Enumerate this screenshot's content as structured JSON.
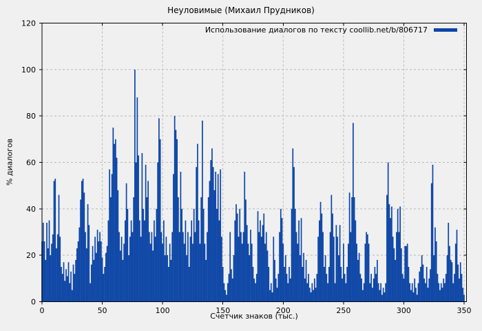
{
  "title": "Неуловимые (Михаил Прудников)",
  "legend": {
    "label": "Использование диалогов по тексту coollib.net/b/806717",
    "position": "top-right"
  },
  "colors": {
    "bar": "#0c45a6",
    "grid": "#b8b8b8",
    "background": "#f0f0f0",
    "border": "#000000",
    "text": "#000000"
  },
  "chart_data": {
    "type": "bar",
    "subtype": "impulses",
    "title": "Неуловимые (Михаил Прудников)",
    "xlabel": "Счетчик знаков (тыс.)",
    "ylabel": "% диалогов",
    "legend_label": "Использование диалогов по тексту coollib.net/b/806717",
    "legend_position": "top-right",
    "grid": true,
    "xlim": [
      0,
      352
    ],
    "ylim": [
      0,
      120
    ],
    "x_ticks": [
      0,
      50,
      100,
      150,
      200,
      250,
      300,
      350
    ],
    "y_ticks": [
      0,
      20,
      40,
      60,
      80,
      100,
      120
    ],
    "x_start": 0,
    "x_step": 1,
    "values": [
      26,
      34,
      26,
      18,
      34,
      23,
      35,
      20,
      25,
      29,
      52,
      53,
      23,
      29,
      46,
      28,
      15,
      12,
      17,
      9,
      14,
      11,
      17,
      8,
      13,
      5,
      16,
      12,
      18,
      23,
      26,
      32,
      44,
      52,
      53,
      47,
      30,
      23,
      42,
      33,
      8,
      16,
      24,
      18,
      28,
      21,
      31,
      26,
      30,
      26,
      19,
      12,
      15,
      21,
      24,
      35,
      57,
      45,
      55,
      75,
      68,
      70,
      62,
      48,
      30,
      22,
      28,
      18,
      25,
      35,
      51,
      40,
      20,
      28,
      35,
      30,
      45,
      100,
      60,
      88,
      63,
      35,
      28,
      64,
      40,
      35,
      59,
      45,
      52,
      30,
      25,
      30,
      22,
      35,
      28,
      40,
      60,
      79,
      70,
      30,
      25,
      35,
      20,
      28,
      20,
      15,
      25,
      18,
      30,
      55,
      80,
      74,
      70,
      45,
      30,
      56,
      40,
      30,
      25,
      35,
      20,
      30,
      15,
      28,
      35,
      25,
      40,
      30,
      58,
      68,
      35,
      25,
      45,
      78,
      40,
      25,
      18,
      30,
      45,
      52,
      61,
      66,
      58,
      48,
      56,
      40,
      55,
      35,
      57,
      28,
      15,
      8,
      5,
      3,
      8,
      12,
      30,
      14,
      10,
      20,
      35,
      42,
      38,
      28,
      40,
      30,
      25,
      30,
      56,
      44,
      33,
      25,
      20,
      31,
      25,
      15,
      10,
      8,
      12,
      39,
      30,
      35,
      28,
      33,
      38,
      25,
      30,
      22,
      15,
      5,
      8,
      4,
      28,
      18,
      10,
      6,
      12,
      30,
      40,
      36,
      25,
      15,
      20,
      12,
      8,
      15,
      10,
      40,
      66,
      58,
      40,
      30,
      25,
      35,
      20,
      36,
      15,
      21,
      10,
      18,
      8,
      12,
      6,
      4,
      8,
      5,
      10,
      6,
      12,
      28,
      35,
      43,
      38,
      30,
      15,
      20,
      12,
      8,
      15,
      30,
      46,
      38,
      28,
      8,
      33,
      28,
      20,
      33,
      15,
      10,
      25,
      12,
      8,
      15,
      25,
      47,
      30,
      45,
      77,
      45,
      35,
      25,
      18,
      21,
      12,
      10,
      5,
      8,
      25,
      30,
      29,
      25,
      8,
      12,
      6,
      10,
      15,
      12,
      18,
      8,
      5,
      8,
      3,
      6,
      4,
      8,
      46,
      60,
      42,
      36,
      41,
      28,
      23,
      18,
      30,
      40,
      30,
      41,
      23,
      12,
      10,
      24,
      24,
      25,
      15,
      8,
      5,
      8,
      4,
      10,
      6,
      3,
      8,
      13,
      15,
      20,
      16,
      10,
      8,
      15,
      6,
      10,
      14,
      51,
      59,
      20,
      32,
      26,
      12,
      8,
      5,
      8,
      6,
      10,
      8,
      12,
      20,
      34,
      24,
      18,
      17,
      8,
      12,
      25,
      31,
      16,
      10,
      17,
      12,
      6,
      3
    ]
  }
}
